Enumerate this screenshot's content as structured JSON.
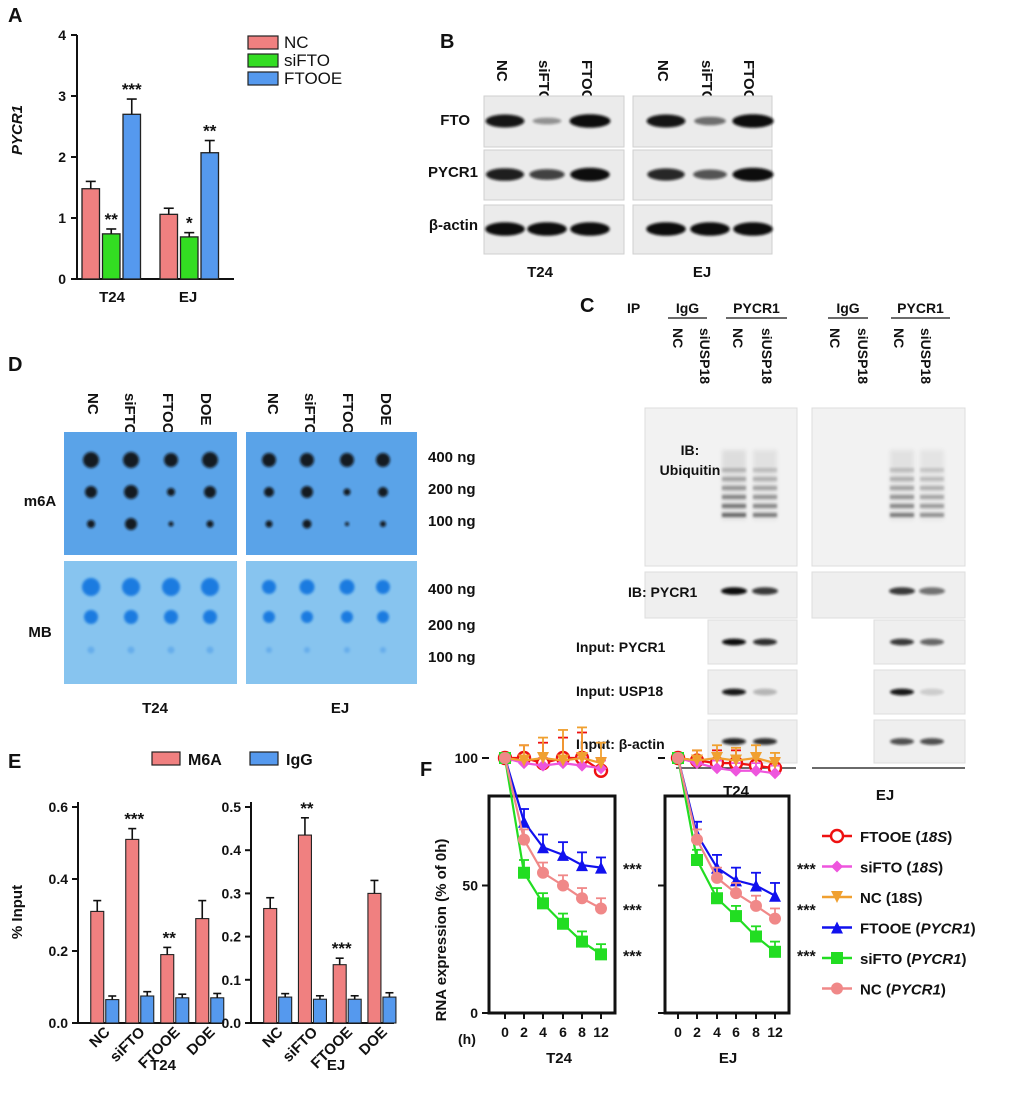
{
  "panelA": {
    "letter": "A",
    "ylabel": "PYCR1",
    "yticks": [
      "0",
      "1",
      "2",
      "3",
      "4"
    ],
    "legend": [
      {
        "name": "NC",
        "color": "#f08080"
      },
      {
        "name": "siFTO",
        "color": "#33dd22"
      },
      {
        "name": "FTOOE",
        "color": "#5599ee"
      }
    ],
    "groups": [
      "T24",
      "EJ"
    ]
  },
  "panelB": {
    "letter": "B",
    "lanes": [
      "NC",
      "siFTO",
      "FTOOE"
    ],
    "rows": [
      "FTO",
      "PYCR1",
      "β-actin"
    ],
    "cells": [
      "T24",
      "EJ"
    ]
  },
  "panelC": {
    "letter": "C",
    "ip": "IP",
    "groups": [
      "IgG",
      "PYCR1",
      "IgG",
      "PYCR1"
    ],
    "lanes": [
      "NC",
      "siUSP18",
      "NC",
      "siUSP18",
      "NC",
      "siUSP18",
      "NC",
      "siUSP18"
    ],
    "ib_ub_1": "IB:",
    "ib_ub_2": "Ubiquitin",
    "ib_pycr1": "IB:  PYCR1",
    "inputs": [
      "Input:  PYCR1",
      "Input:  USP18",
      "Input:  β-actin"
    ],
    "cells": [
      "T24",
      "EJ"
    ]
  },
  "panelD": {
    "letter": "D",
    "lanes": [
      "NC",
      "siFTO",
      "FTOOE",
      "DOE",
      "NC",
      "siFTO",
      "FTOOE",
      "DOE"
    ],
    "rows": [
      "m6A",
      "MB"
    ],
    "amounts": [
      "400 ng",
      "200 ng",
      "100 ng",
      "400 ng",
      "200 ng",
      "100 ng"
    ],
    "cells": [
      "T24",
      "EJ"
    ]
  },
  "panelE": {
    "letter": "E",
    "ylabel": "% Input",
    "legend": [
      {
        "name": "M6A",
        "color": "#f08080"
      },
      {
        "name": "IgG",
        "color": "#5599ee"
      }
    ],
    "categories": [
      "NC",
      "siFTO",
      "FTOOE",
      "DOE"
    ],
    "cells": [
      "T24",
      "EJ"
    ],
    "yticks_left": [
      "0.0",
      "0.2",
      "0.4",
      "0.6"
    ],
    "yticks_right": [
      "0.0",
      "0.1",
      "0.2",
      "0.3",
      "0.4",
      "0.5"
    ]
  },
  "panelF": {
    "letter": "F",
    "ylabel": "RNA expression (% of 0h)",
    "xunit": "(h)",
    "yticks": [
      "0",
      "50",
      "100"
    ],
    "xticks": [
      "0",
      "2",
      "4",
      "6",
      "8",
      "12"
    ],
    "cells": [
      "T24",
      "EJ"
    ],
    "legend": [
      {
        "pre": "FTOOE (",
        "it": "18S",
        "post": ")",
        "color": "#ee1111",
        "marker": "circle-open"
      },
      {
        "pre": "siFTO (",
        "it": "18S",
        "post": ")",
        "color": "#ee55dd",
        "marker": "diamond"
      },
      {
        "pre": "NC (18S)",
        "it": "",
        "post": "",
        "color": "#f0a030",
        "marker": "tri-down"
      },
      {
        "pre": "FTOOE (",
        "it": "PYCR1",
        "post": ")",
        "color": "#1111ee",
        "marker": "tri-up"
      },
      {
        "pre": "siFTO (",
        "it": "PYCR1",
        "post": ")",
        "color": "#22dd22",
        "marker": "square"
      },
      {
        "pre": "NC (",
        "it": "PYCR1",
        "post": ")",
        "color": "#f08888",
        "marker": "circle"
      }
    ]
  },
  "chart_data": [
    {
      "type": "bar",
      "panel": "A",
      "categories": [
        "T24",
        "EJ"
      ],
      "series": [
        {
          "name": "NC",
          "values": [
            1.48,
            1.06
          ],
          "err": [
            0.12,
            0.1
          ]
        },
        {
          "name": "siFTO",
          "values": [
            0.74,
            0.69
          ],
          "err": [
            0.08,
            0.07
          ]
        },
        {
          "name": "FTOOE",
          "values": [
            2.7,
            2.07
          ],
          "err": [
            0.25,
            0.2
          ]
        }
      ],
      "annotations": [
        [
          "",
          "**",
          "***"
        ],
        [
          "",
          "*",
          "**"
        ]
      ],
      "ylabel": "PYCR1",
      "ylim": [
        0,
        4
      ]
    },
    {
      "type": "bar",
      "panel": "E",
      "title": "T24",
      "categories": [
        "NC",
        "siFTO",
        "FTOOE",
        "DOE"
      ],
      "series": [
        {
          "name": "M6A",
          "values": [
            0.31,
            0.51,
            0.19,
            0.29
          ],
          "err": [
            0.03,
            0.03,
            0.02,
            0.05
          ]
        },
        {
          "name": "IgG",
          "values": [
            0.065,
            0.075,
            0.07,
            0.07
          ],
          "err": [
            0.01,
            0.012,
            0.01,
            0.012
          ]
        }
      ],
      "annotations": [
        "",
        "***",
        "**",
        ""
      ],
      "ylabel": "% Input",
      "ylim": [
        0,
        0.6
      ]
    },
    {
      "type": "bar",
      "panel": "E",
      "title": "EJ",
      "categories": [
        "NC",
        "siFTO",
        "FTOOE",
        "DOE"
      ],
      "series": [
        {
          "name": "M6A",
          "values": [
            0.265,
            0.435,
            0.135,
            0.3
          ],
          "err": [
            0.025,
            0.04,
            0.015,
            0.03
          ]
        },
        {
          "name": "IgG",
          "values": [
            0.06,
            0.055,
            0.055,
            0.06
          ],
          "err": [
            0.008,
            0.008,
            0.008,
            0.01
          ]
        }
      ],
      "annotations": [
        "",
        "**",
        "***",
        ""
      ],
      "ylim": [
        0,
        0.5
      ]
    },
    {
      "type": "line",
      "panel": "F",
      "title": "T24",
      "x": [
        0,
        2,
        4,
        6,
        8,
        12
      ],
      "series": [
        {
          "name": "FTOOE (18S)",
          "values": [
            100,
            100,
            98,
            100,
            100,
            95
          ],
          "err": [
            0,
            5,
            8,
            8,
            10,
            5
          ]
        },
        {
          "name": "siFTO (18S)",
          "values": [
            100,
            98,
            97,
            98,
            97,
            96
          ],
          "err": [
            0,
            3,
            3,
            3,
            3,
            3
          ]
        },
        {
          "name": "NC (18S)",
          "values": [
            100,
            99,
            100,
            99,
            100,
            98
          ],
          "err": [
            0,
            6,
            8,
            12,
            12,
            8
          ]
        },
        {
          "name": "FTOOE (PYCR1)",
          "values": [
            100,
            75,
            65,
            62,
            58,
            57
          ],
          "err": [
            0,
            5,
            5,
            5,
            5,
            4
          ]
        },
        {
          "name": "siFTO (PYCR1)",
          "values": [
            100,
            55,
            43,
            35,
            28,
            23
          ],
          "err": [
            0,
            5,
            4,
            4,
            4,
            4
          ]
        },
        {
          "name": "NC (PYCR1)",
          "values": [
            100,
            68,
            55,
            50,
            45,
            41
          ],
          "err": [
            0,
            4,
            4,
            4,
            4,
            4
          ]
        }
      ],
      "annotations": [
        "***",
        "***",
        "***"
      ],
      "ylabel": "RNA expression (% of 0h)",
      "ylim": [
        0,
        125
      ]
    },
    {
      "type": "line",
      "panel": "F",
      "title": "EJ",
      "x": [
        0,
        2,
        4,
        6,
        8,
        12
      ],
      "series": [
        {
          "name": "FTOOE (18S)",
          "values": [
            100,
            99,
            98,
            98,
            97,
            96
          ],
          "err": [
            0,
            4,
            5,
            5,
            5,
            4
          ]
        },
        {
          "name": "siFTO (18S)",
          "values": [
            100,
            98,
            96,
            95,
            95,
            94
          ],
          "err": [
            0,
            3,
            3,
            3,
            3,
            3
          ]
        },
        {
          "name": "NC (18S)",
          "values": [
            100,
            99,
            100,
            99,
            100,
            98
          ],
          "err": [
            0,
            4,
            5,
            5,
            5,
            4
          ]
        },
        {
          "name": "FTOOE (PYCR1)",
          "values": [
            100,
            70,
            57,
            52,
            50,
            46
          ],
          "err": [
            0,
            5,
            5,
            5,
            5,
            5
          ]
        },
        {
          "name": "siFTO (PYCR1)",
          "values": [
            100,
            60,
            45,
            38,
            30,
            24
          ],
          "err": [
            0,
            4,
            4,
            4,
            4,
            4
          ]
        },
        {
          "name": "NC (PYCR1)",
          "values": [
            100,
            68,
            53,
            47,
            42,
            37
          ],
          "err": [
            0,
            4,
            4,
            4,
            4,
            4
          ]
        }
      ],
      "annotations": [
        "***",
        "***",
        "***"
      ],
      "ylim": [
        0,
        125
      ]
    }
  ]
}
